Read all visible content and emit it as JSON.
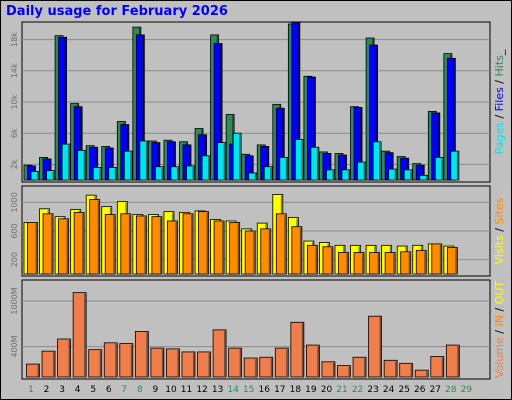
{
  "title": "Daily usage for February 2026",
  "colors": {
    "background": "#c0c0c0",
    "title": "#0000ff",
    "hits": "#2e8b57",
    "files": "#0000ff",
    "pages": "#00e5ee",
    "visits": "#ffff00",
    "sites": "#ff8c00",
    "volume": "#ee7e4c",
    "weekday": "#006400",
    "weekend": "#2e8b57"
  },
  "chart_data": [
    {
      "type": "bar",
      "categories": [
        "1",
        "2",
        "3",
        "4",
        "5",
        "6",
        "7",
        "8",
        "9",
        "10",
        "11",
        "12",
        "13",
        "14",
        "15",
        "16",
        "17",
        "18",
        "19",
        "20",
        "21",
        "22",
        "23",
        "24",
        "25",
        "26",
        "27",
        "28",
        "29"
      ],
      "weekend_days": [
        "1",
        "7",
        "8",
        "14",
        "15",
        "21",
        "22",
        "28",
        "29"
      ],
      "ylim": [
        0,
        20000
      ],
      "y_ticks": [
        {
          "value": 2000,
          "label": "2k"
        },
        {
          "value": 6000,
          "label": "6k"
        },
        {
          "value": 10000,
          "label": "10k"
        },
        {
          "value": 14000,
          "label": "14k"
        },
        {
          "value": 18000,
          "label": "18k"
        }
      ],
      "side_label": [
        "Pages",
        " / ",
        "Files",
        " / ",
        "Hits",
        "_"
      ],
      "series": [
        {
          "name": "Hits",
          "color_key": "hits",
          "values": [
            1900,
            2900,
            18500,
            9800,
            4400,
            4300,
            7500,
            19600,
            5000,
            5100,
            4900,
            6600,
            18600,
            8400,
            3300,
            4500,
            9700,
            20000,
            13300,
            3600,
            3400,
            9400,
            18200,
            3700,
            3000,
            2100,
            8800,
            16200,
            null
          ]
        },
        {
          "name": "Files",
          "color_key": "files",
          "values": [
            1800,
            2700,
            18300,
            9400,
            4200,
            4100,
            7100,
            18600,
            4800,
            4900,
            4500,
            5800,
            17500,
            4600,
            3100,
            4300,
            9200,
            20200,
            13200,
            3400,
            3200,
            9300,
            17300,
            3500,
            2800,
            1900,
            8600,
            15600,
            null
          ]
        },
        {
          "name": "Pages",
          "color_key": "pages",
          "values": [
            1100,
            1200,
            4600,
            3800,
            1600,
            1600,
            3700,
            5000,
            1700,
            1700,
            1800,
            3100,
            4800,
            6000,
            900,
            1700,
            2900,
            5200,
            4200,
            1300,
            1300,
            2300,
            4900,
            1400,
            1300,
            600,
            2900,
            3700,
            null
          ]
        }
      ]
    },
    {
      "type": "bar",
      "categories": [
        "1",
        "2",
        "3",
        "4",
        "5",
        "6",
        "7",
        "8",
        "9",
        "10",
        "11",
        "12",
        "13",
        "14",
        "15",
        "16",
        "17",
        "18",
        "19",
        "20",
        "21",
        "22",
        "23",
        "24",
        "25",
        "26",
        "27",
        "28",
        "29"
      ],
      "ylim": [
        0,
        1200
      ],
      "y_ticks": [
        {
          "value": 200,
          "label": "200"
        },
        {
          "value": 600,
          "label": "600"
        },
        {
          "value": 1000,
          "label": "1000"
        }
      ],
      "side_label": [
        "Visits",
        " / ",
        "Sites"
      ],
      "series": [
        {
          "name": "Visits",
          "color_key": "visits",
          "values": [
            720,
            910,
            800,
            900,
            1100,
            940,
            1010,
            830,
            830,
            870,
            860,
            880,
            760,
            740,
            630,
            710,
            1110,
            790,
            460,
            440,
            400,
            400,
            400,
            400,
            390,
            400,
            420,
            390,
            null
          ]
        },
        {
          "name": "Sites",
          "color_key": "sites",
          "values": [
            720,
            840,
            770,
            860,
            1040,
            830,
            840,
            810,
            800,
            740,
            840,
            870,
            740,
            720,
            600,
            630,
            840,
            660,
            400,
            380,
            300,
            300,
            300,
            300,
            310,
            330,
            420,
            370,
            null
          ]
        }
      ]
    },
    {
      "type": "bar",
      "categories": [
        "1",
        "2",
        "3",
        "4",
        "5",
        "6",
        "7",
        "8",
        "9",
        "10",
        "11",
        "12",
        "13",
        "14",
        "15",
        "16",
        "17",
        "18",
        "19",
        "20",
        "21",
        "22",
        "23",
        "24",
        "25",
        "26",
        "27",
        "28",
        "29"
      ],
      "ylim": [
        0,
        1250
      ],
      "y_ticks": [
        {
          "value": 400,
          "label": "400M"
        },
        {
          "value": 1000,
          "label": "1000M"
        }
      ],
      "side_label": [
        "Volume",
        " / ",
        "IN",
        " / ",
        "OUT"
      ],
      "series": [
        {
          "name": "Volume",
          "color_key": "volume",
          "values": [
            170,
            340,
            500,
            1110,
            360,
            450,
            440,
            600,
            380,
            370,
            330,
            330,
            620,
            380,
            250,
            260,
            380,
            720,
            420,
            200,
            150,
            260,
            800,
            220,
            180,
            90,
            270,
            420,
            null
          ]
        }
      ]
    }
  ]
}
